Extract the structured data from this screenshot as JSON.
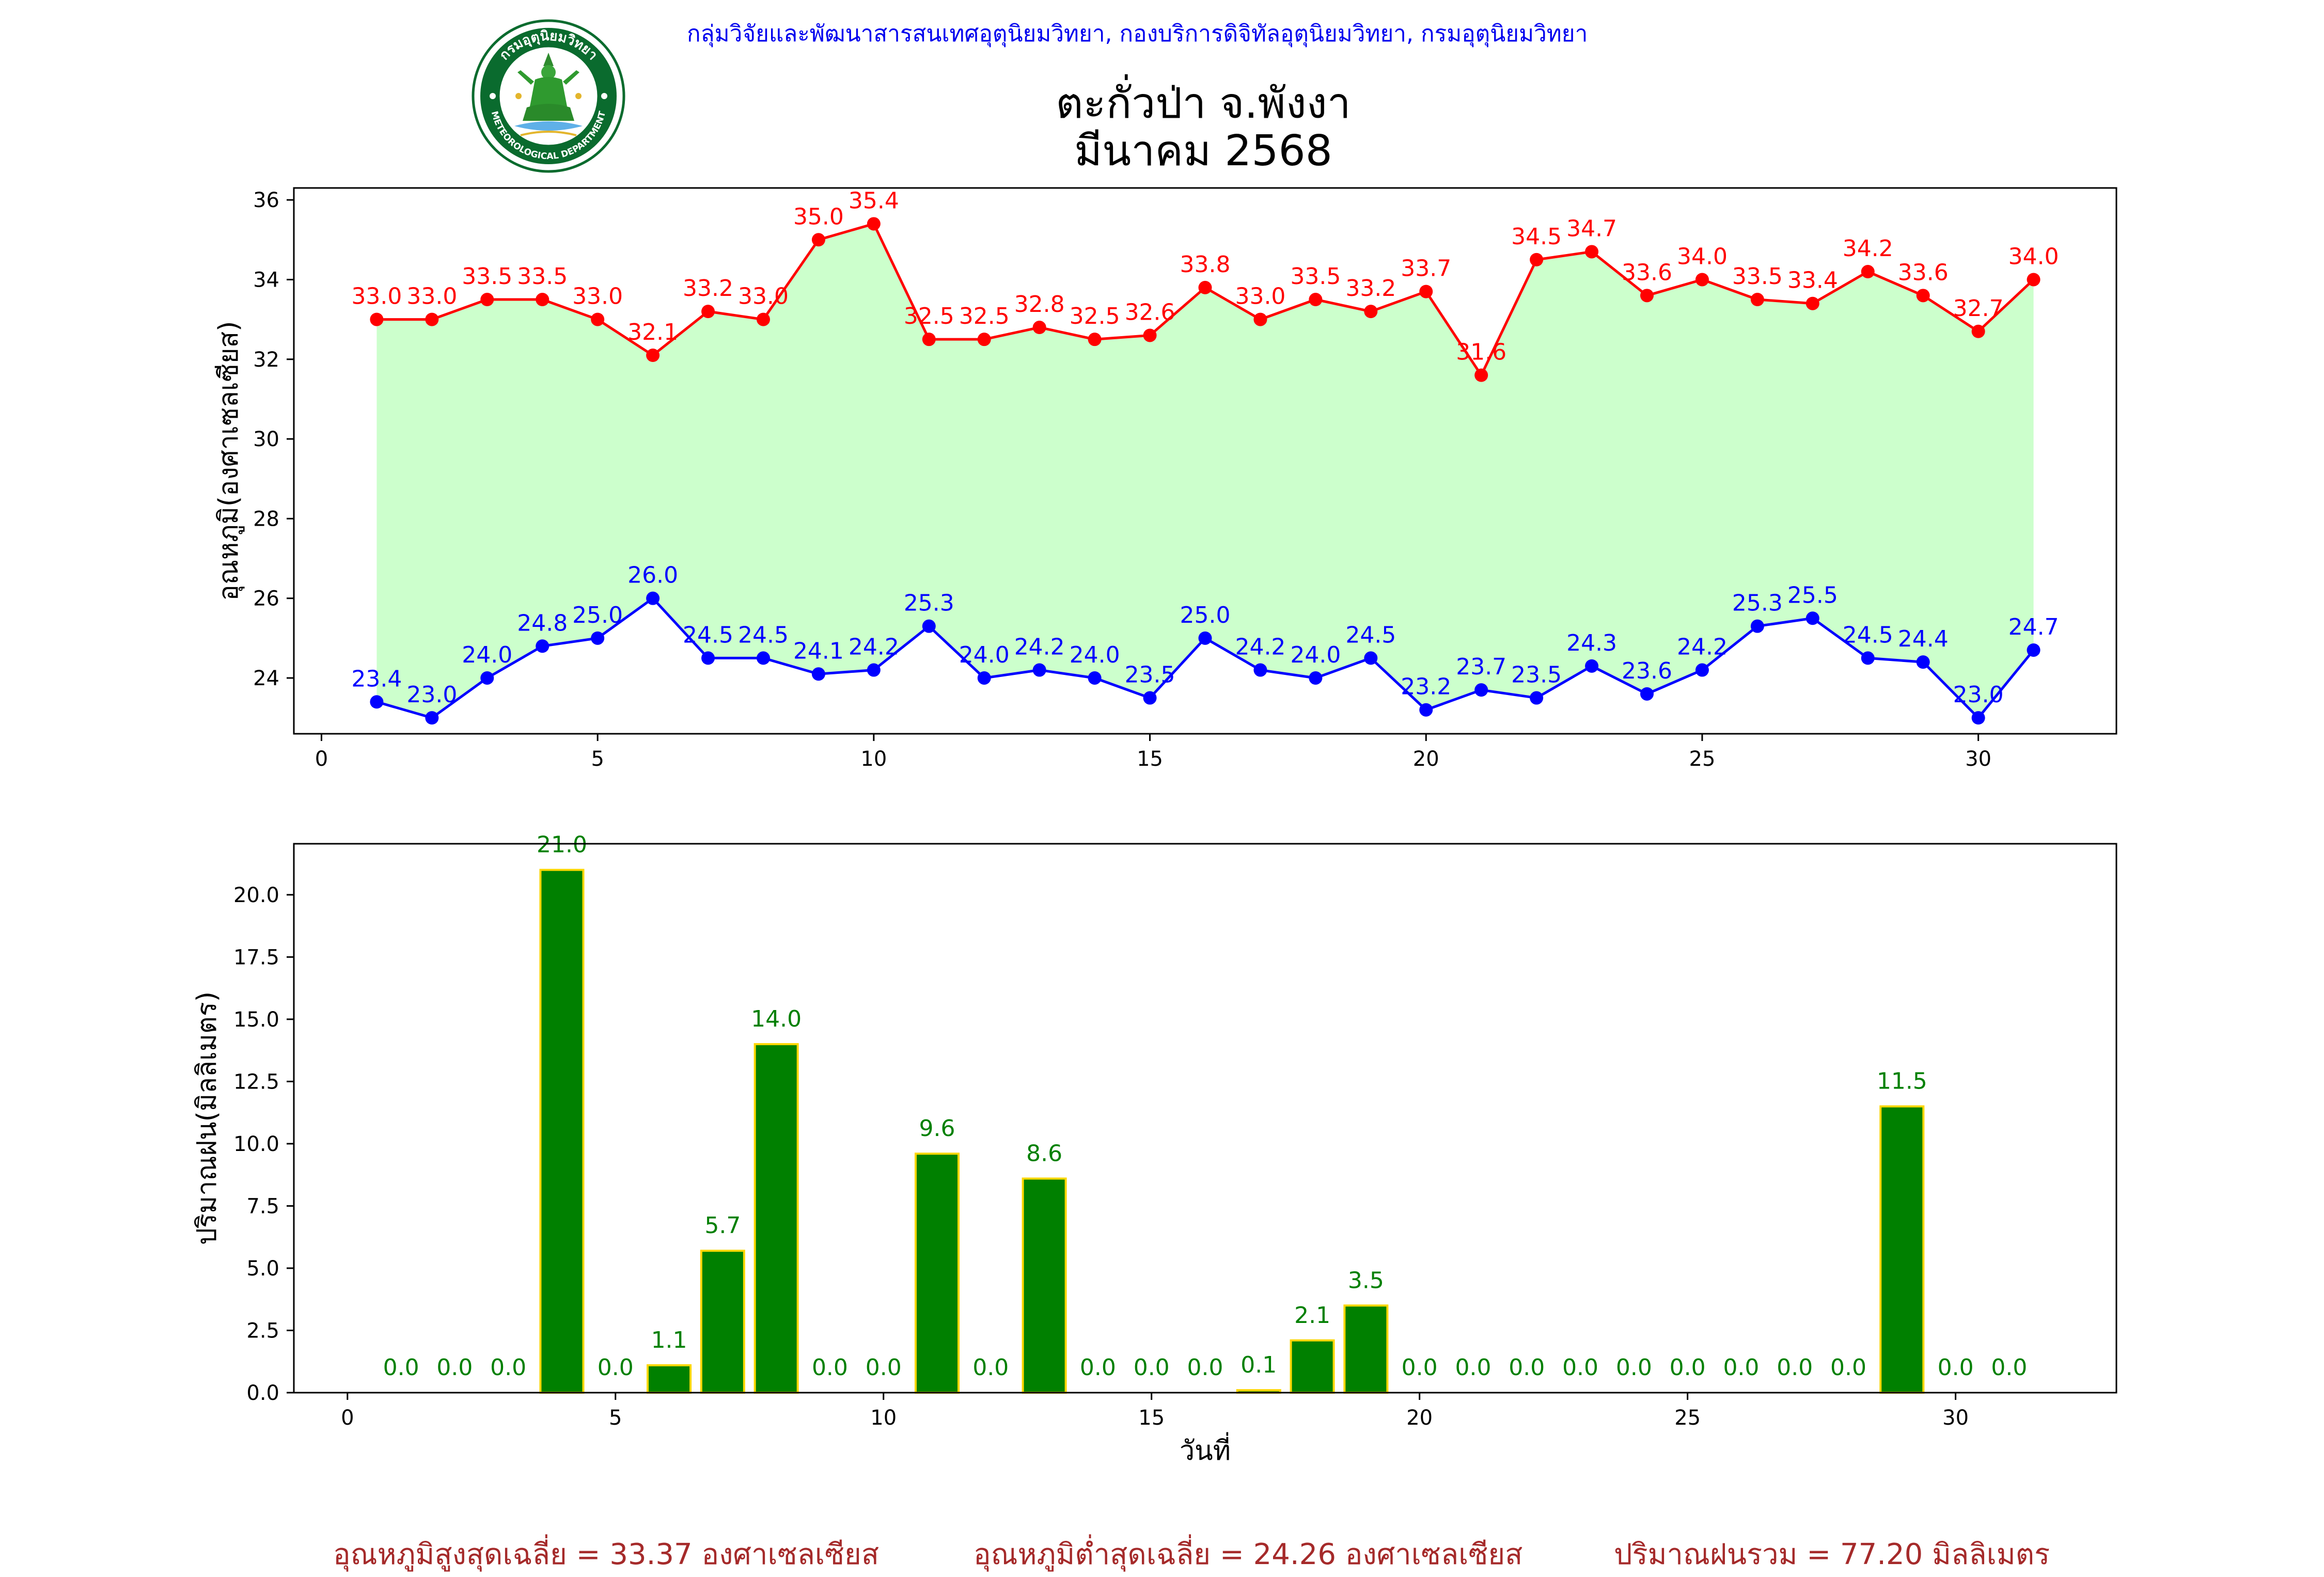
{
  "header": {
    "credit": "กลุ่มวิจัยและพัฒนาสารสนเทศอุตุนิยมวิทยา, กองบริการดิจิทัลอุตุนิยมวิทยา, กรมอุตุนิยมวิทยา",
    "title_line1": "ตะกั่วป่า จ.พังงา",
    "title_line2": "มีนาคม 2568",
    "logo": {
      "text_top": "กรมอุตุนิยมวิทยา",
      "text_bottom": "METEOROLOGICAL DEPARTMENT",
      "ring_color": "#0a6b2e",
      "icon": "deity-seal-icon"
    }
  },
  "chart_data": [
    {
      "type": "line",
      "ylabel": "อุณหภูมิ(องศาเซลเซียส)",
      "xlabel": "",
      "xlim": [
        -0.5,
        32.5
      ],
      "ylim": [
        22.6,
        36.3
      ],
      "xticks": [
        0,
        5,
        10,
        15,
        20,
        25,
        30
      ],
      "yticks": [
        24,
        26,
        28,
        30,
        32,
        34,
        36
      ],
      "fill_between": true,
      "fill_color": "#ccffcc",
      "grid": false,
      "x": [
        1,
        2,
        3,
        4,
        5,
        6,
        7,
        8,
        9,
        10,
        11,
        12,
        13,
        14,
        15,
        16,
        17,
        18,
        19,
        20,
        21,
        22,
        23,
        24,
        25,
        26,
        27,
        28,
        29,
        30,
        31
      ],
      "series": [
        {
          "color": "#ff0000",
          "values": [
            33.0,
            33.0,
            33.5,
            33.5,
            33.0,
            32.1,
            33.2,
            33.0,
            35.0,
            35.4,
            32.5,
            32.5,
            32.8,
            32.5,
            32.6,
            33.8,
            33.0,
            33.5,
            33.2,
            33.7,
            31.6,
            34.5,
            34.7,
            33.6,
            34.0,
            33.5,
            33.4,
            34.2,
            33.6,
            32.7,
            34.0
          ]
        },
        {
          "color": "#0000ff",
          "values": [
            23.4,
            23.0,
            24.0,
            24.8,
            25.0,
            26.0,
            24.5,
            24.5,
            24.1,
            24.2,
            25.3,
            24.0,
            24.2,
            24.0,
            23.5,
            25.0,
            24.2,
            24.0,
            24.5,
            23.2,
            23.7,
            23.5,
            24.3,
            23.6,
            24.2,
            25.3,
            25.5,
            24.5,
            24.4,
            23.0,
            24.7
          ]
        }
      ]
    },
    {
      "type": "bar",
      "ylabel": "ปริมาณฝน(มิลลิเมตร)",
      "xlabel": "วันที่",
      "xlim": [
        -1,
        33
      ],
      "ylim": [
        0,
        22.05
      ],
      "xticks": [
        0,
        5,
        10,
        15,
        20,
        25,
        30
      ],
      "yticks": [
        "0.0",
        "2.5",
        "5.0",
        "7.5",
        "10.0",
        "12.5",
        "15.0",
        "17.5",
        "20.0"
      ],
      "bar_color": "#008000",
      "edge_color": "#ffd700",
      "label_color": "#008000",
      "grid": false,
      "categories": [
        1,
        2,
        3,
        4,
        5,
        6,
        7,
        8,
        9,
        10,
        11,
        12,
        13,
        14,
        15,
        16,
        17,
        18,
        19,
        20,
        21,
        22,
        23,
        24,
        25,
        26,
        27,
        28,
        29,
        30,
        31
      ],
      "values": [
        0.0,
        0.0,
        0.0,
        21.0,
        0.0,
        1.1,
        5.7,
        14.0,
        0.0,
        0.0,
        9.6,
        0.0,
        8.6,
        0.0,
        0.0,
        0.0,
        0.1,
        2.1,
        3.5,
        0.0,
        0.0,
        0.0,
        0.0,
        0.0,
        0.0,
        0.0,
        0.0,
        0.0,
        11.5,
        0.0,
        0.0
      ]
    }
  ],
  "summary": {
    "avg_max": "อุณหภูมิสูงสุดเฉลี่ย = 33.37 องศาเซลเซียส",
    "avg_min": "อุณหภูมิต่ำสุดเฉลี่ย = 24.26 องศาเซลเซียส",
    "rain_total": "ปริมาณฝนรวม = 77.20 มิลลิเมตร"
  }
}
